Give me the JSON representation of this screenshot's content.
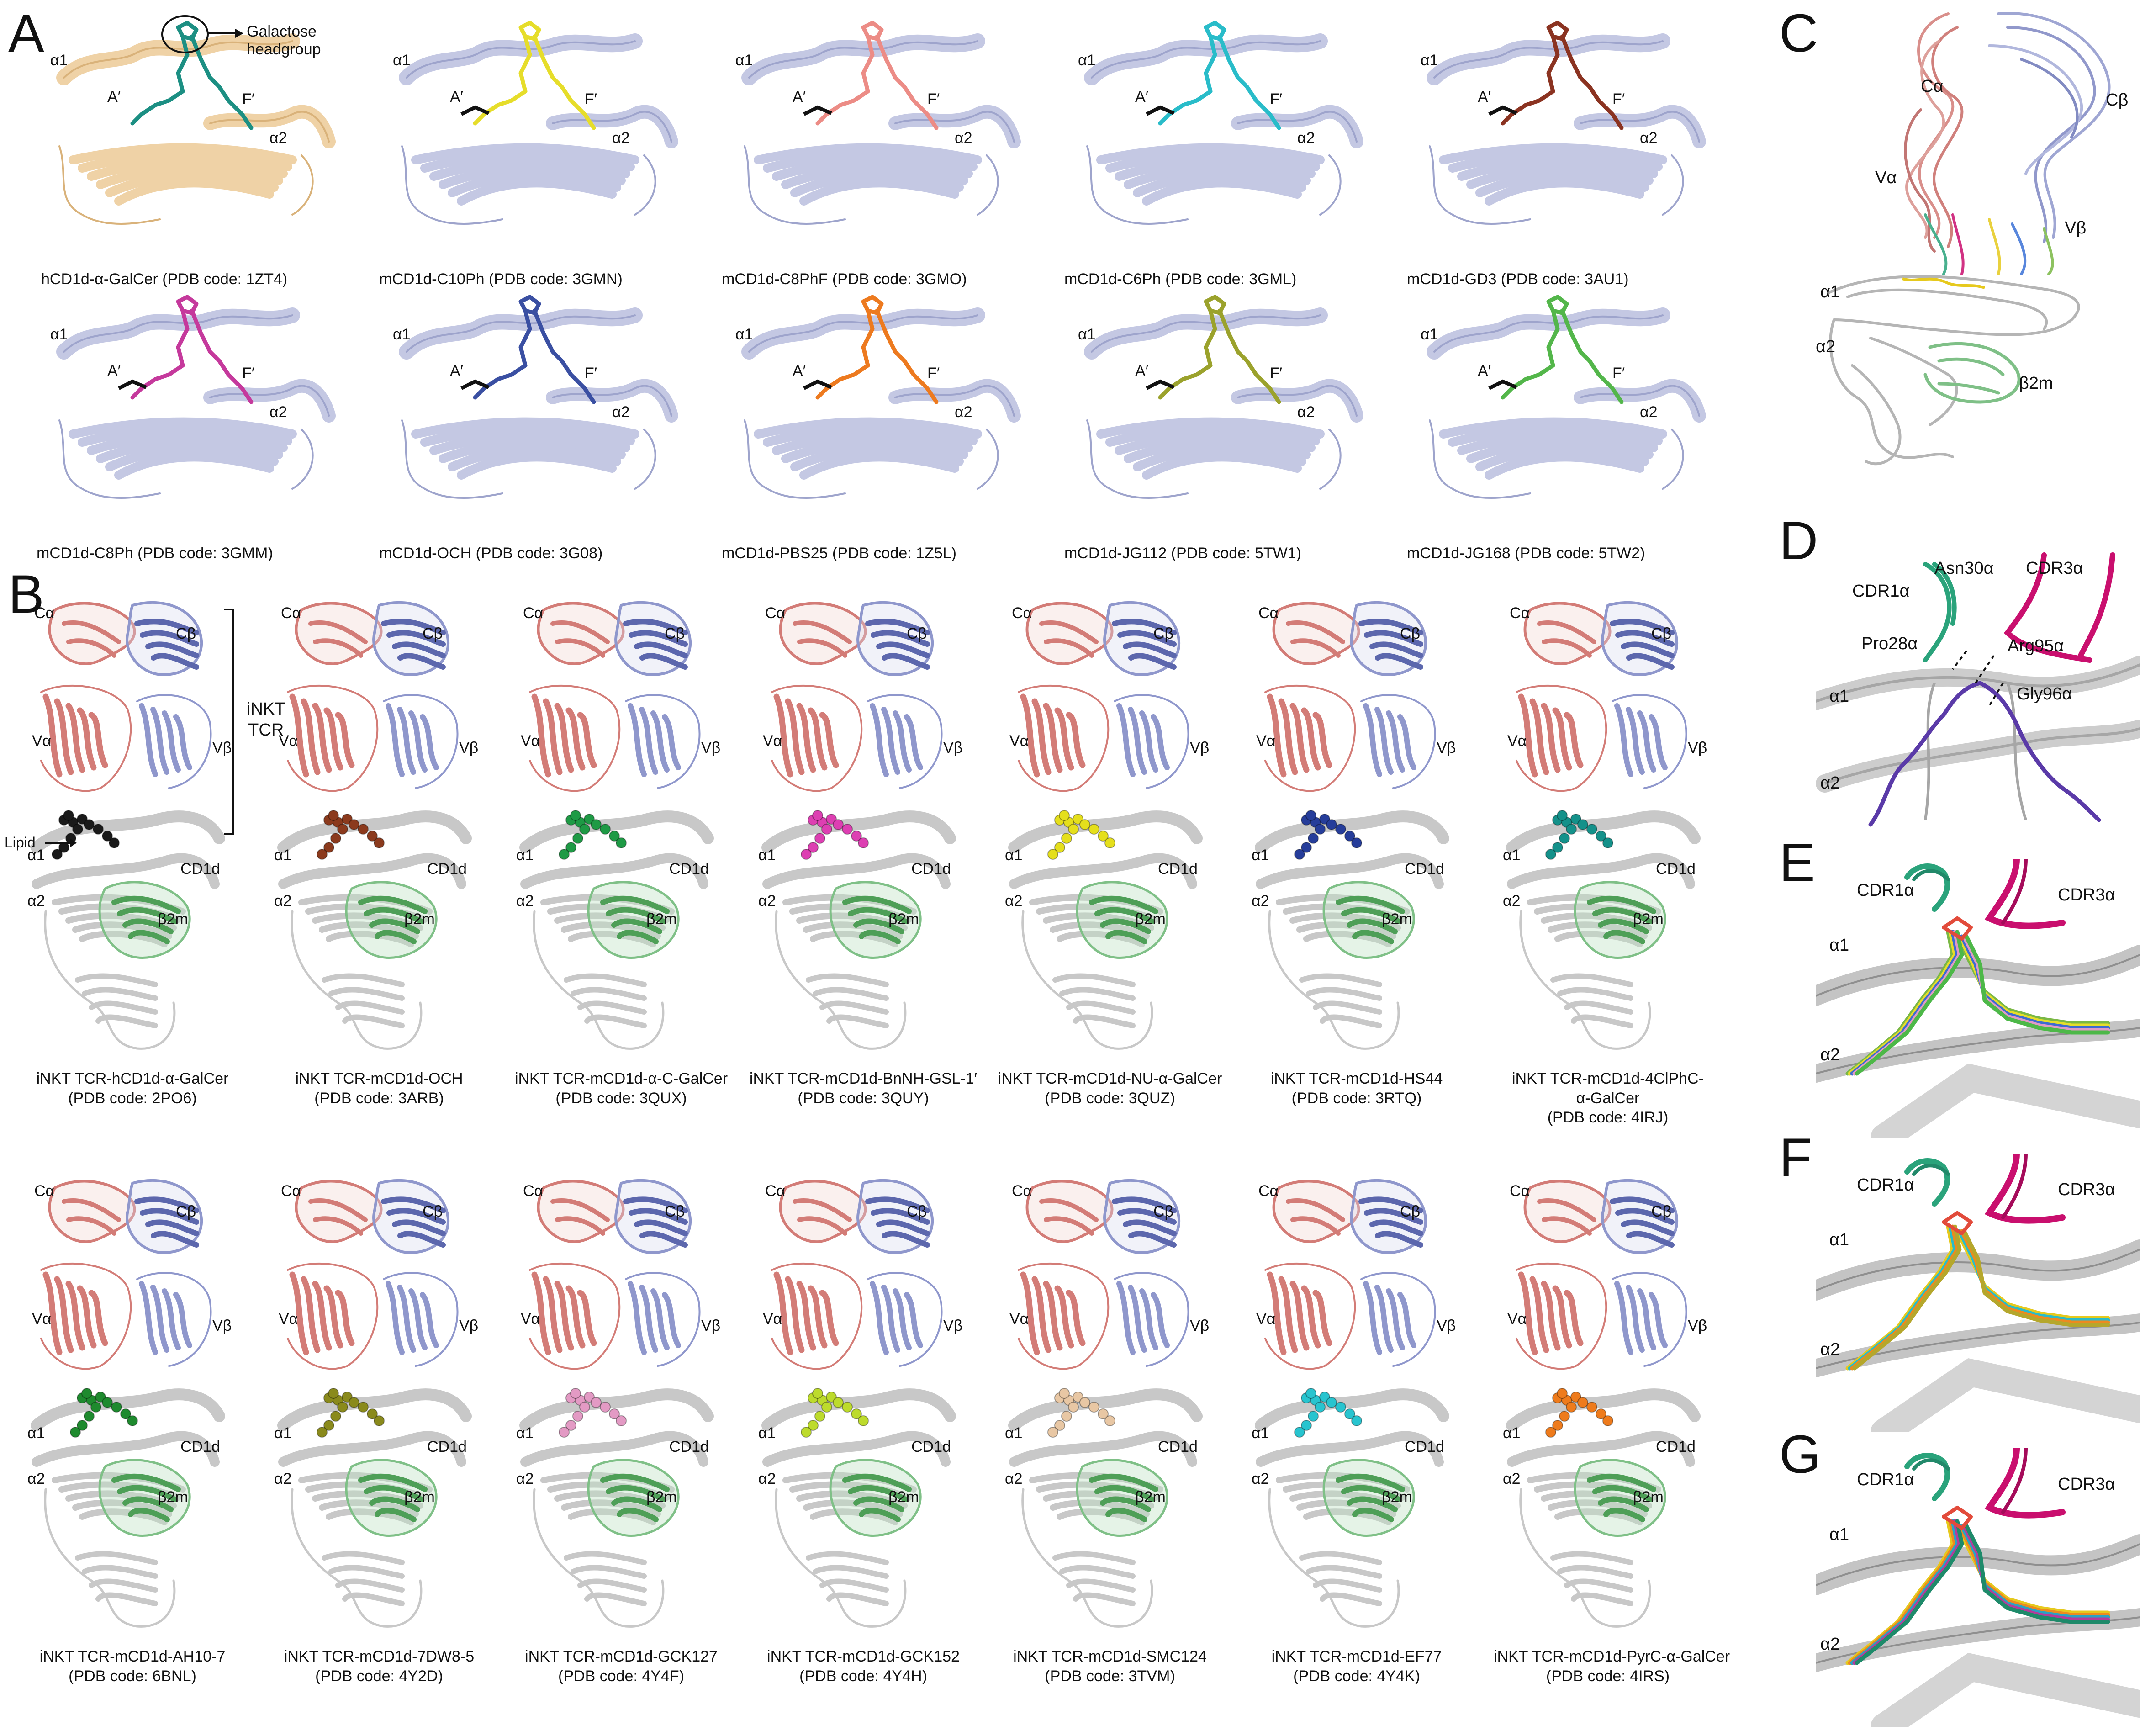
{
  "panel_letters": [
    "A",
    "B",
    "C",
    "D",
    "E",
    "F",
    "G"
  ],
  "colors": {
    "cd1d_light": "#c4c8e3",
    "hcd1d": "#efd2a6",
    "cd1d_grey": "#c8c8c8",
    "tcr_alpha": "#d37c77",
    "tcr_beta": "#8f97cc",
    "b2m": "#7fc087",
    "cdr1": "#2aa37b",
    "cdr3": "#c90f6e"
  },
  "panel_a": {
    "ligand_colors": [
      "#1c8f83",
      "#e6dd2a",
      "#ec8c86",
      "#29bcc9",
      "#8b3321",
      "#c5399c",
      "#3a4fa2",
      "#ed7a1f",
      "#9ba22c",
      "#53b64a"
    ],
    "labels": {
      "alpha1": "α1",
      "alpha2": "α2",
      "a_prime": "A′",
      "f_prime": "F′",
      "headgroup": "Galactose headgroup"
    },
    "captions": [
      "hCD1d-α-GalCer (PDB code: 1ZT4)",
      "mCD1d-C10Ph (PDB code: 3GMN)",
      "mCD1d-C8PhF (PDB code: 3GMO)",
      "mCD1d-C6Ph (PDB code: 3GML)",
      "mCD1d-GD3 (PDB code: 3AU1)",
      "mCD1d-C8Ph (PDB code: 3GMM)",
      "mCD1d-OCH (PDB code: 3G08)",
      "mCD1d-PBS25 (PDB code: 1Z5L)",
      "mCD1d-JG112 (PDB code: 5TW1)",
      "mCD1d-JG168 (PDB code: 5TW2)"
    ]
  },
  "panel_b": {
    "ligand_colors": [
      "#1a1a1a",
      "#8b3a1d",
      "#1e9a45",
      "#dd3fb2",
      "#e5df1c",
      "#263d9a",
      "#14918a",
      "#1e8a2e",
      "#8a8a1c",
      "#e39ac4",
      "#bddb2c",
      "#e8c7a4",
      "#28c4cf",
      "#ee7b1c"
    ],
    "labels": {
      "c_alpha": "Cα",
      "c_beta": "Cβ",
      "v_alpha": "Vα",
      "v_beta": "Vβ",
      "alpha1": "α1",
      "alpha2": "α2",
      "cd1d": "CD1d",
      "b2m": "β2m",
      "inkt_tcr": "iNKT\nTCR",
      "lipid": "Lipid"
    },
    "captions": [
      "iNKT TCR-hCD1d-α-GalCer\n(PDB code: 2PO6)",
      "iNKT TCR-mCD1d-OCH\n(PDB code: 3ARB)",
      "iNKT TCR-mCD1d-α-C-GalCer\n(PDB code: 3QUX)",
      "iNKT TCR-mCD1d-BnNH-GSL-1′\n(PDB code: 3QUY)",
      "iNKT TCR-mCD1d-NU-α-GalCer\n(PDB code: 3QUZ)",
      "iNKT TCR-mCD1d-HS44\n(PDB code: 3RTQ)",
      "iNKT TCR-mCD1d-4ClPhC-\nα-GalCer\n(PDB code: 4IRJ)",
      "iNKT TCR-mCD1d-AH10-7\n(PDB code: 6BNL)",
      "iNKT TCR-mCD1d-7DW8-5\n(PDB code: 4Y2D)",
      "iNKT TCR-mCD1d-GCK127\n(PDB code: 4Y4F)",
      "iNKT TCR-mCD1d-GCK152\n(PDB code: 4Y4H)",
      "iNKT TCR-mCD1d-SMC124\n(PDB code: 3TVM)",
      "iNKT TCR-mCD1d-EF77\n(PDB code: 4Y4K)",
      "iNKT TCR-mCD1d-PyrC-α-GalCer\n(PDB code: 4IRS)"
    ]
  },
  "panel_c": {
    "labels": [
      "Cα",
      "Cβ",
      "Vα",
      "Vβ",
      "α1",
      "α2",
      "β2m"
    ]
  },
  "panel_d": {
    "labels": [
      "Asn30α",
      "CDR3α",
      "CDR1α",
      "Pro28α",
      "Arg95α",
      "Gly96α",
      "α1",
      "α2"
    ]
  },
  "panel_e": {
    "labels": [
      "CDR1α",
      "CDR3α",
      "α1",
      "α2"
    ]
  },
  "panel_f": {
    "labels": [
      "CDR1α",
      "CDR3α",
      "α1",
      "α2"
    ]
  },
  "panel_g": {
    "labels": [
      "CDR1α",
      "CDR3α",
      "α1",
      "α2"
    ]
  }
}
